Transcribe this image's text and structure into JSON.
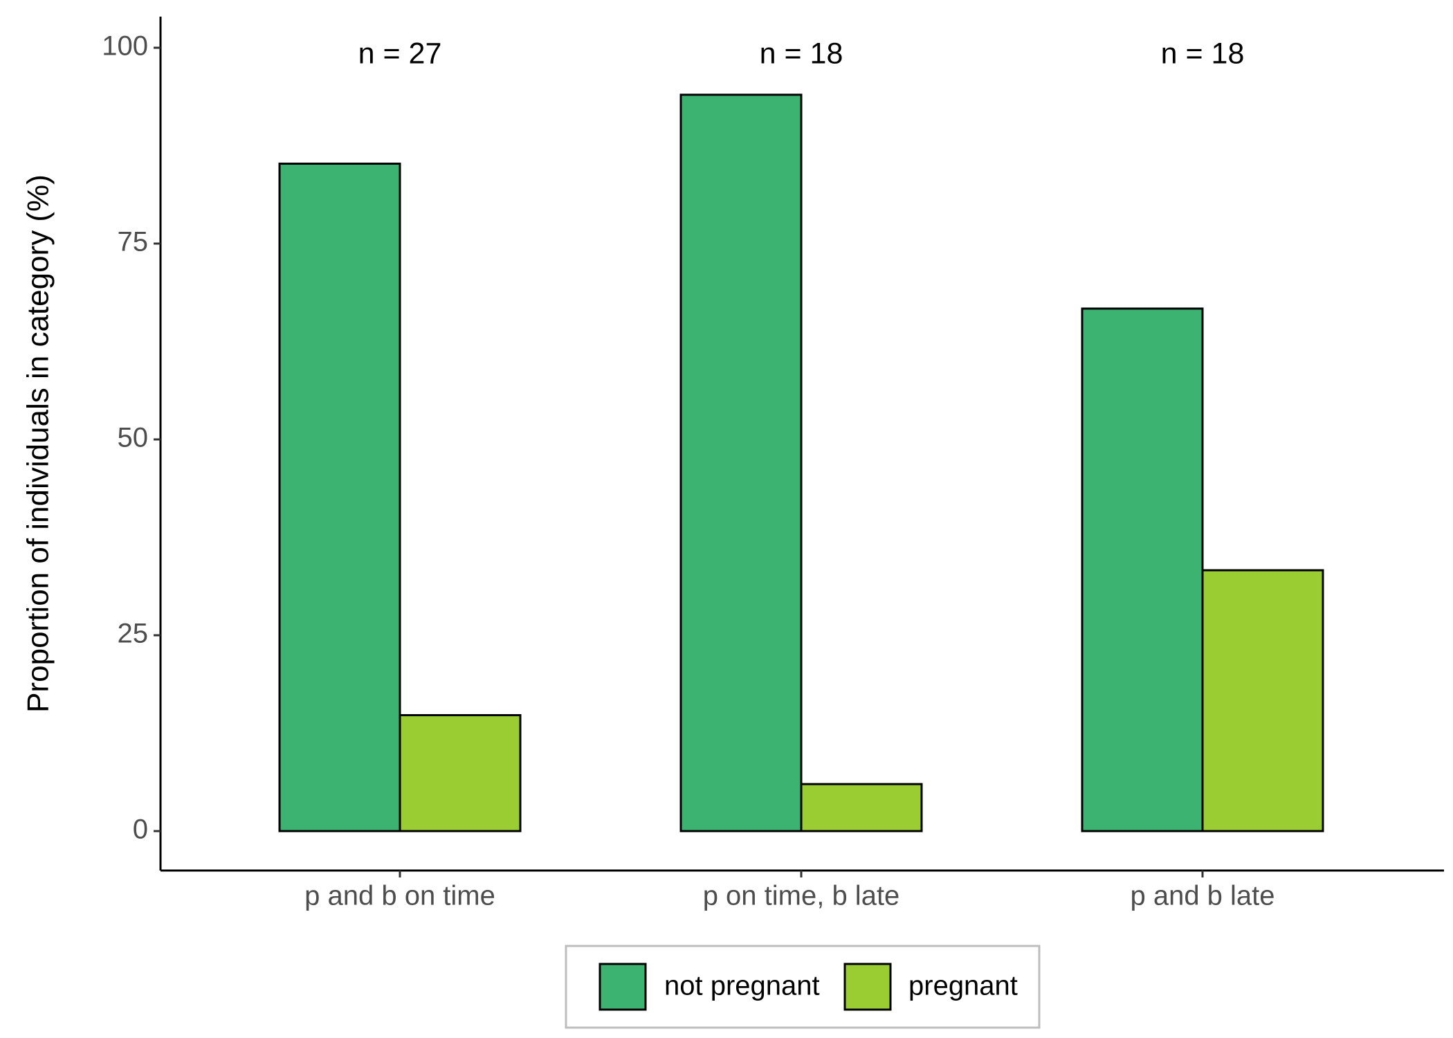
{
  "chart_data": {
    "type": "bar",
    "categories": [
      "p and b on time",
      "p on time, b late",
      "p and b late"
    ],
    "series": [
      {
        "name": "not pregnant",
        "values": [
          85.2,
          94.0,
          66.7
        ],
        "color": "#3CB371"
      },
      {
        "name": "pregnant",
        "values": [
          14.8,
          6.0,
          33.3
        ],
        "color": "#9ACD32"
      }
    ],
    "annotations": [
      "n = 27",
      "n = 18",
      "n = 18"
    ],
    "ylabel": "Proportion of individuals in category (%)",
    "xlabel": "",
    "ylim": [
      -4.5,
      104
    ],
    "yticks": [
      0,
      25,
      50,
      75,
      100
    ],
    "ytick_labels": [
      "0",
      "25",
      "50",
      "75",
      "100"
    ],
    "grid": false,
    "legend_position": "bottom"
  }
}
